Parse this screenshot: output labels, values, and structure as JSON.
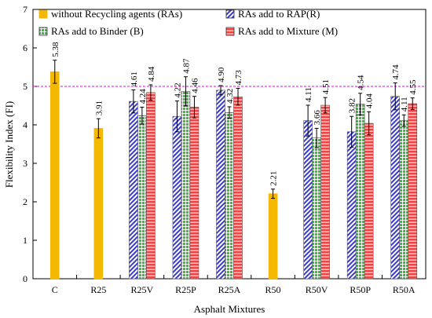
{
  "chart_data": {
    "type": "bar",
    "title": "",
    "xlabel": "Asphalt Mixtures",
    "ylabel": "Flexibility Index (FI)",
    "ylim": [
      0,
      7
    ],
    "yticks": [
      0,
      1,
      2,
      3,
      4,
      5,
      6,
      7
    ],
    "grid": false,
    "reference_line": {
      "y": 5,
      "color": "#ee00ee",
      "style": "dashed"
    },
    "legend_position": "top-inside",
    "categories": [
      "C",
      "R25",
      "R25V",
      "R25P",
      "R25A",
      "R50",
      "R50V",
      "R50P",
      "R50A"
    ],
    "series": [
      {
        "name": "without Recycling agents (RAs)",
        "pattern": "solid",
        "color": "#f5b800",
        "values": [
          5.38,
          3.91,
          null,
          null,
          null,
          2.21,
          null,
          null,
          null
        ],
        "errors": [
          0.3,
          0.25,
          null,
          null,
          null,
          0.12,
          null,
          null,
          null
        ]
      },
      {
        "name": "RAs add to RAP(R)",
        "pattern": "diagonal-hatch",
        "color": "#3a3ad0",
        "values": [
          null,
          null,
          4.61,
          4.22,
          4.9,
          null,
          4.11,
          3.82,
          4.74
        ],
        "errors": [
          null,
          null,
          0.3,
          0.4,
          0.12,
          null,
          0.4,
          0.4,
          0.35
        ]
      },
      {
        "name": "RAs add to Binder (B)",
        "pattern": "grid-hatch",
        "color": "#33c033",
        "values": [
          null,
          null,
          4.24,
          4.87,
          4.32,
          null,
          3.66,
          4.54,
          4.11
        ],
        "errors": [
          null,
          null,
          0.22,
          0.38,
          0.15,
          null,
          0.25,
          0.28,
          0.15
        ]
      },
      {
        "name": "RAs add to Mixture (M)",
        "pattern": "horizontal-stripes",
        "color": "#ee4444",
        "values": [
          null,
          null,
          4.84,
          4.46,
          4.73,
          null,
          4.51,
          4.04,
          4.55
        ],
        "errors": [
          null,
          null,
          0.2,
          0.28,
          0.22,
          null,
          0.2,
          0.3,
          0.15
        ]
      }
    ]
  }
}
